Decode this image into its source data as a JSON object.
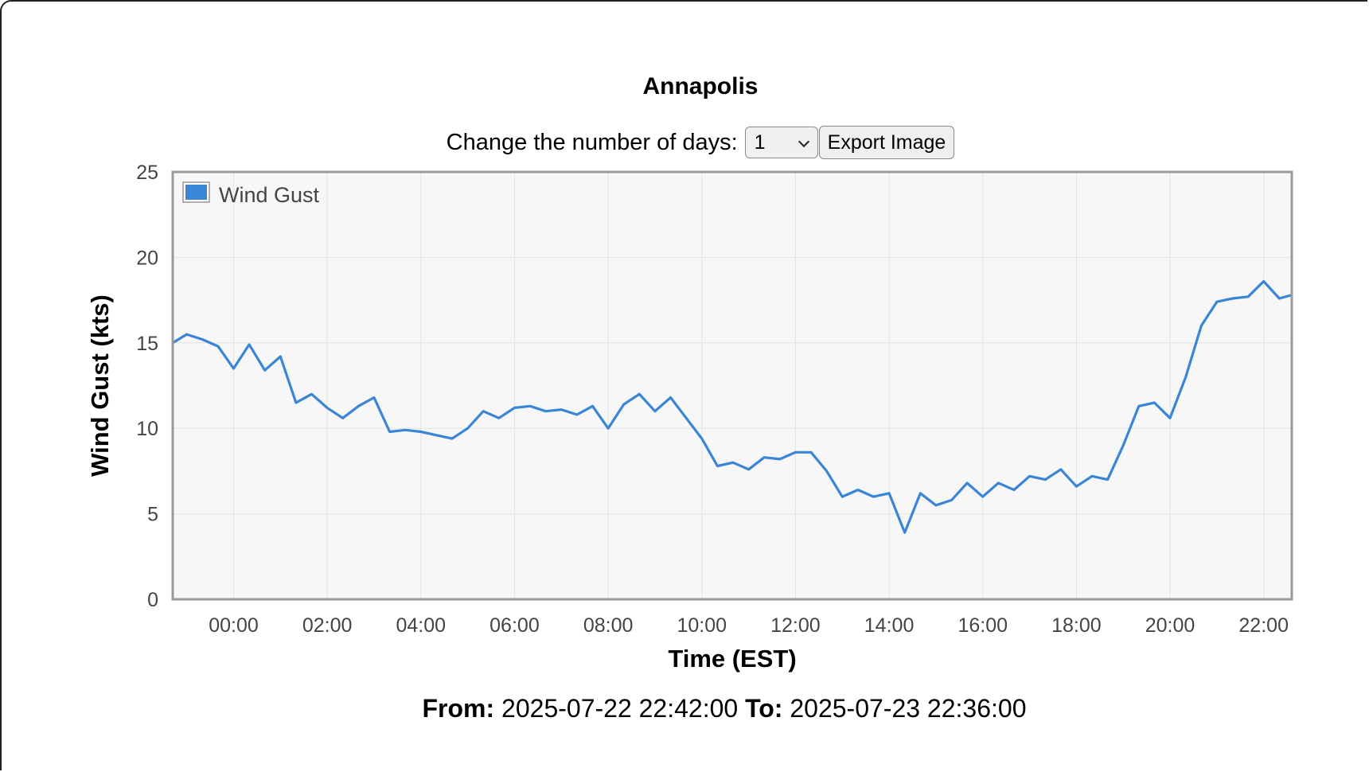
{
  "title": "Annapolis",
  "controls": {
    "days_label": "Change the number of days:",
    "days_value": "1",
    "export_label": "Export Image"
  },
  "footer": {
    "from_label": "From:",
    "from_value": "2025-07-22 22:42:00",
    "to_label": "To:",
    "to_value": "2025-07-23 22:36:00"
  },
  "chart_data": {
    "type": "line",
    "xlabel": "Time (EST)",
    "ylabel": "Wind Gust (kts)",
    "ylim": [
      0,
      25
    ],
    "yticks": [
      0,
      5,
      10,
      15,
      20,
      25
    ],
    "xlim": [
      "2025-07-22 22:42",
      "2025-07-23 22:36"
    ],
    "xticks": [
      "00:00",
      "02:00",
      "04:00",
      "06:00",
      "08:00",
      "10:00",
      "12:00",
      "14:00",
      "16:00",
      "18:00",
      "20:00",
      "22:00"
    ],
    "grid": true,
    "legend": "top-left",
    "series": [
      {
        "name": "Wind Gust",
        "color": "#3a85d6",
        "x": [
          "2025-07-22 22:42",
          "2025-07-22 23:00",
          "2025-07-22 23:20",
          "2025-07-22 23:40",
          "2025-07-23 00:00",
          "2025-07-23 00:20",
          "2025-07-23 00:40",
          "2025-07-23 01:00",
          "2025-07-23 01:20",
          "2025-07-23 01:40",
          "2025-07-23 02:00",
          "2025-07-23 02:20",
          "2025-07-23 02:40",
          "2025-07-23 03:00",
          "2025-07-23 03:20",
          "2025-07-23 03:40",
          "2025-07-23 04:00",
          "2025-07-23 04:20",
          "2025-07-23 04:40",
          "2025-07-23 05:00",
          "2025-07-23 05:20",
          "2025-07-23 05:40",
          "2025-07-23 06:00",
          "2025-07-23 06:20",
          "2025-07-23 06:40",
          "2025-07-23 07:00",
          "2025-07-23 07:20",
          "2025-07-23 07:40",
          "2025-07-23 08:00",
          "2025-07-23 08:20",
          "2025-07-23 08:40",
          "2025-07-23 09:00",
          "2025-07-23 09:20",
          "2025-07-23 09:40",
          "2025-07-23 10:00",
          "2025-07-23 10:20",
          "2025-07-23 10:40",
          "2025-07-23 11:00",
          "2025-07-23 11:20",
          "2025-07-23 11:40",
          "2025-07-23 12:00",
          "2025-07-23 12:20",
          "2025-07-23 12:40",
          "2025-07-23 13:00",
          "2025-07-23 13:20",
          "2025-07-23 13:40",
          "2025-07-23 14:00",
          "2025-07-23 14:20",
          "2025-07-23 14:40",
          "2025-07-23 15:00",
          "2025-07-23 15:20",
          "2025-07-23 15:40",
          "2025-07-23 16:00",
          "2025-07-23 16:20",
          "2025-07-23 16:40",
          "2025-07-23 17:00",
          "2025-07-23 17:20",
          "2025-07-23 17:40",
          "2025-07-23 18:00",
          "2025-07-23 18:20",
          "2025-07-23 18:40",
          "2025-07-23 19:00",
          "2025-07-23 19:20",
          "2025-07-23 19:40",
          "2025-07-23 20:00",
          "2025-07-23 20:20",
          "2025-07-23 20:40",
          "2025-07-23 21:00",
          "2025-07-23 21:20",
          "2025-07-23 21:40",
          "2025-07-23 22:00",
          "2025-07-23 22:20",
          "2025-07-23 22:36"
        ],
        "y": [
          15.0,
          15.5,
          15.2,
          14.8,
          13.5,
          14.9,
          13.4,
          14.2,
          11.5,
          12.0,
          11.2,
          10.6,
          11.3,
          11.8,
          9.8,
          9.9,
          9.8,
          9.6,
          9.4,
          10.0,
          11.0,
          10.6,
          11.2,
          11.3,
          11.0,
          11.1,
          10.8,
          11.3,
          10.0,
          11.4,
          12.0,
          11.0,
          11.8,
          10.6,
          9.4,
          7.8,
          8.0,
          7.6,
          8.3,
          8.2,
          8.6,
          8.6,
          7.5,
          6.0,
          6.4,
          6.0,
          6.2,
          3.9,
          6.2,
          5.5,
          5.8,
          6.8,
          6.0,
          6.8,
          6.4,
          7.2,
          7.0,
          7.6,
          6.6,
          7.2,
          7.0,
          9.0,
          11.3,
          11.5,
          10.6,
          13.0,
          16.0,
          17.4,
          17.6,
          17.7,
          18.6,
          17.6,
          17.8
        ]
      }
    ]
  }
}
